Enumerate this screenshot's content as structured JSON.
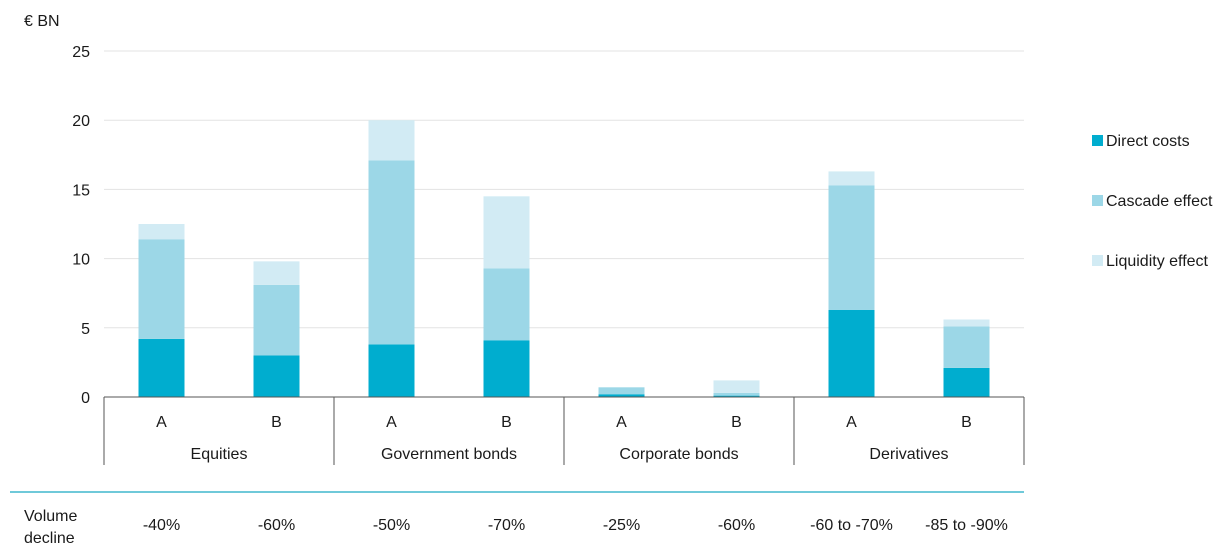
{
  "chart_data": {
    "type": "bar",
    "stacked": true,
    "y_unit_label": "€ BN",
    "ylim": [
      0,
      25
    ],
    "y_ticks": [
      0,
      5,
      10,
      15,
      20,
      25
    ],
    "grid": true,
    "legend_position": "right",
    "groups": [
      "Equities",
      "Government bonds",
      "Corporate bonds",
      "Derivatives"
    ],
    "categories": [
      "A",
      "B",
      "A",
      "B",
      "A",
      "B",
      "A",
      "B"
    ],
    "series": [
      {
        "name": "Direct costs",
        "color": "#00adcf",
        "values": [
          4.2,
          3.0,
          3.8,
          4.1,
          0.2,
          0.1,
          6.3,
          2.1
        ]
      },
      {
        "name": "Cascade effect",
        "color": "#9cd7e7",
        "values": [
          7.2,
          5.1,
          13.3,
          5.2,
          0.5,
          0.2,
          9.0,
          3.0
        ]
      },
      {
        "name": "Liquidity effect",
        "color": "#d2ebf4",
        "values": [
          1.1,
          1.7,
          2.9,
          5.2,
          0.0,
          0.9,
          1.0,
          0.5
        ]
      }
    ],
    "volume_decline": {
      "label_line1": "Volume",
      "label_line2": "decline",
      "values": [
        "-40%",
        "-60%",
        "-50%",
        "-70%",
        "-25%",
        "-60%",
        "-60 to -70%",
        "-85 to -90%"
      ]
    }
  }
}
